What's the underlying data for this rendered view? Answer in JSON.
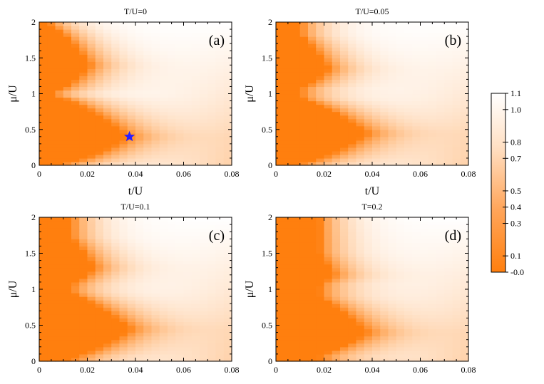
{
  "chart_data": {
    "type": "heatmap",
    "x_range": [
      0,
      0.08
    ],
    "y_range": [
      0,
      2
    ],
    "x_ticks": [
      "0",
      "0.02",
      "0.04",
      "0.06",
      "0.08"
    ],
    "y_ticks": [
      "0",
      "0.5",
      "1",
      "1.5",
      "2"
    ],
    "grid": false,
    "colormap": {
      "low": "#ff7f0e",
      "high": "#ffffff"
    },
    "colorbar": {
      "range": [
        0,
        1.1
      ],
      "ticks": [
        "1.1",
        "1.0",
        "0.8",
        "0.7",
        "0.5",
        "0.4",
        "0.3",
        "0.1",
        "-0.0"
      ],
      "tick_values": [
        1.1,
        1.0,
        0.8,
        0.7,
        0.5,
        0.4,
        0.3,
        0.1,
        0.0
      ]
    },
    "panels": [
      {
        "title": "T/U=0",
        "label": "(a)",
        "xlabel": "t/U",
        "ylabel": "μ/U",
        "marker": {
          "shape": "star",
          "color": "#2a1fff",
          "x": 0.0375,
          "y": 0.4
        },
        "mott_lobes": [
          {
            "ylo": 0.0,
            "yhi": 1.0,
            "xmax": 0.037,
            "yc": 0.4
          },
          {
            "ylo": 1.0,
            "yhi": 2.0,
            "xmax": 0.021,
            "yc": 1.4
          }
        ],
        "base_lobe": {
          "xmax": 0.004
        }
      },
      {
        "title": "T/U=0.05",
        "label": "(b)",
        "xlabel": "t/U",
        "ylabel": "μ/U",
        "mott_lobes": [
          {
            "ylo": 0.0,
            "yhi": 1.0,
            "xmax": 0.038,
            "yc": 0.45
          },
          {
            "ylo": 1.0,
            "yhi": 2.0,
            "xmax": 0.022,
            "yc": 1.35
          }
        ],
        "base_lobe": {
          "xmax": 0.01
        }
      },
      {
        "title": "T/U=0.1",
        "label": "(c)",
        "xlabel": "",
        "ylabel": "μ/U",
        "mott_lobes": [
          {
            "ylo": 0.0,
            "yhi": 1.05,
            "xmax": 0.038,
            "yc": 0.45
          },
          {
            "ylo": 0.95,
            "yhi": 2.0,
            "xmax": 0.023,
            "yc": 1.3
          }
        ],
        "base_lobe": {
          "xmax": 0.013
        }
      },
      {
        "title": "T=0.2",
        "label": "(d)",
        "xlabel": "",
        "ylabel": "μ/U",
        "mott_lobes": [
          {
            "ylo": 0.0,
            "yhi": 1.1,
            "xmax": 0.038,
            "yc": 0.4
          },
          {
            "ylo": 0.9,
            "yhi": 2.0,
            "xmax": 0.024,
            "yc": 1.2
          }
        ],
        "base_lobe": {
          "xmax": 0.018
        }
      }
    ]
  }
}
